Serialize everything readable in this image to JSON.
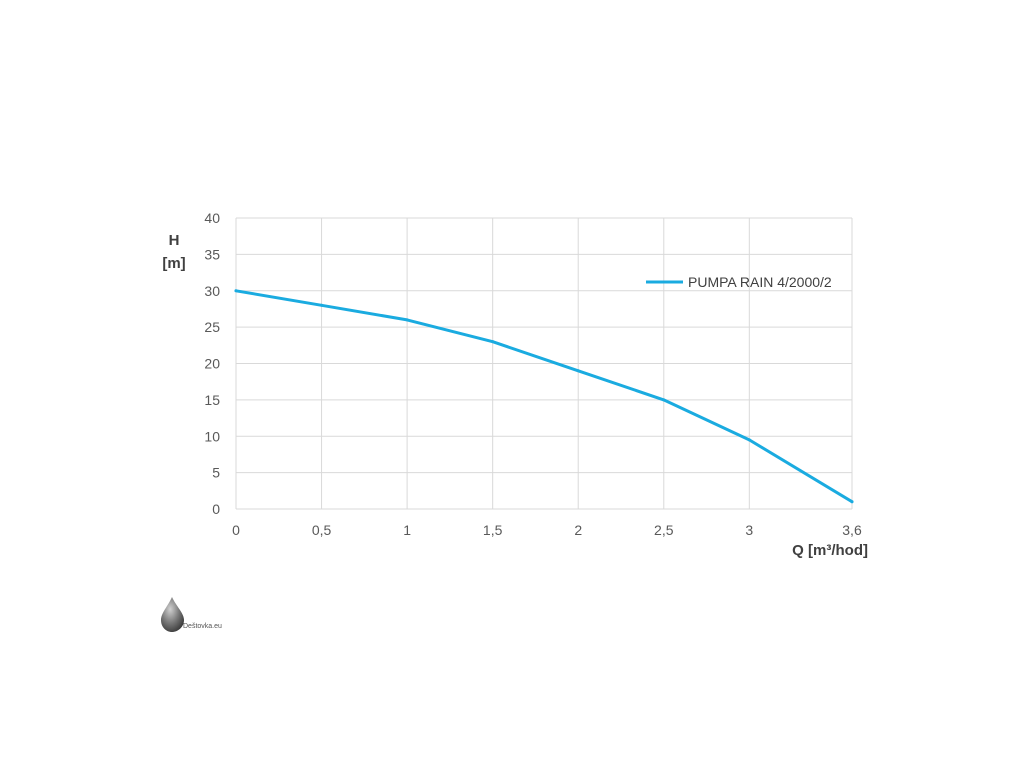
{
  "chart_data": {
    "type": "line",
    "x": [
      0,
      0.5,
      1,
      1.5,
      2,
      2.5,
      3,
      3.6
    ],
    "x_tick_labels": [
      "0",
      "0,5",
      "1",
      "1,5",
      "2",
      "2,5",
      "3",
      "3,6"
    ],
    "y_ticks": [
      0,
      5,
      10,
      15,
      20,
      25,
      30,
      35,
      40
    ],
    "y_tick_labels": [
      "0",
      "5",
      "10",
      "15",
      "20",
      "25",
      "30",
      "35",
      "40"
    ],
    "series": [
      {
        "name": "PUMPA RAIN 4/2000/2",
        "color": "#1AABE0",
        "values": [
          30,
          28,
          26,
          23,
          19,
          15,
          9.5,
          1
        ]
      }
    ],
    "xlabel": "Q [m³/hod]",
    "ylabel_line1": "H",
    "ylabel_line2": "[m]",
    "xlim": [
      0,
      3.6
    ],
    "ylim": [
      0,
      40
    ],
    "grid": true,
    "legend_position": "top-right"
  },
  "brand": {
    "text": "Deštovka.eu",
    "icon": "water-drop-icon"
  }
}
